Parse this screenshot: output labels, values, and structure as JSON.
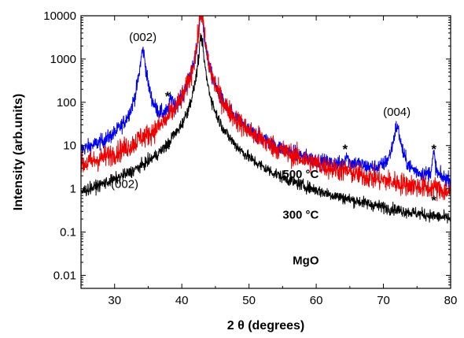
{
  "chart_data": {
    "type": "line",
    "xlabel": "2 θ (degrees)",
    "ylabel": "Intensity (arb.units)",
    "xlim": [
      25,
      80
    ],
    "ylim": [
      0.005,
      10000
    ],
    "y_scale": "log",
    "x_ticks": [
      30,
      40,
      50,
      60,
      70,
      80
    ],
    "x_tick_labels": [
      "30",
      "40",
      "50",
      "60",
      "70",
      "80"
    ],
    "y_ticks": [
      0.01,
      0.1,
      1,
      10,
      100,
      1000,
      10000
    ],
    "y_tick_labels": [
      "0.01",
      "0.1",
      "1",
      "10",
      "100",
      "1000",
      "10000"
    ],
    "grid": false,
    "series": [
      {
        "name": "500 °C",
        "color": "#0000ee",
        "baseline": [
          [
            25,
            3.0
          ],
          [
            30,
            3.3
          ],
          [
            33,
            5.0
          ],
          [
            36,
            5.0
          ],
          [
            38,
            6.5
          ],
          [
            40,
            12
          ],
          [
            41,
            22
          ],
          [
            42,
            80
          ],
          [
            44,
            60
          ],
          [
            46,
            15
          ],
          [
            48,
            6
          ],
          [
            50,
            3.0
          ],
          [
            55,
            1.5
          ],
          [
            60,
            1.0
          ],
          [
            65,
            1.0
          ],
          [
            70,
            1.0
          ],
          [
            75,
            0.9
          ],
          [
            80,
            0.75
          ]
        ],
        "peaks": [
          [
            34.2,
            1550,
            0.35
          ],
          [
            38.3,
            45,
            0.15
          ],
          [
            38.6,
            60,
            0.12
          ],
          [
            41.1,
            130,
            0.12
          ],
          [
            42.9,
            12000,
            0.28
          ],
          [
            64.5,
            3.0,
            0.2
          ],
          [
            66.0,
            0.8,
            1.2
          ],
          [
            72.0,
            25,
            0.45
          ],
          [
            77.5,
            4.5,
            0.2
          ]
        ],
        "noise": 0.09,
        "label": "500 °C"
      },
      {
        "name": "300 °C",
        "color": "#ee0000",
        "baseline": [
          [
            25,
            0.2
          ],
          [
            30,
            0.22
          ],
          [
            33,
            0.3
          ],
          [
            36,
            0.3
          ],
          [
            38,
            0.35
          ],
          [
            40,
            1.0
          ],
          [
            41,
            2.5
          ],
          [
            42,
            12
          ],
          [
            44,
            8
          ],
          [
            46,
            1.2
          ],
          [
            48,
            0.5
          ],
          [
            50,
            0.3
          ],
          [
            55,
            0.17
          ],
          [
            60,
            0.12
          ],
          [
            65,
            0.11
          ],
          [
            70,
            0.1
          ],
          [
            75,
            0.09
          ],
          [
            80,
            0.07
          ]
        ],
        "peaks": [
          [
            33.8,
            3.0,
            0.3
          ],
          [
            38.4,
            4.5,
            0.15
          ],
          [
            41.1,
            10,
            0.12
          ],
          [
            42.9,
            12000,
            0.3
          ],
          [
            64.5,
            0.22,
            0.2
          ],
          [
            66.0,
            0.08,
            1.2
          ],
          [
            77.5,
            0.15,
            0.2
          ]
        ],
        "noise": 0.13,
        "label": "300 °C"
      },
      {
        "name": "MgO",
        "color": "#000000",
        "baseline": [
          [
            25,
            0.03
          ],
          [
            27,
            0.032
          ],
          [
            28.1,
            0.06
          ],
          [
            29,
            0.035
          ],
          [
            35,
            0.035
          ],
          [
            38,
            0.04
          ],
          [
            38.8,
            0.1
          ],
          [
            40,
            0.15
          ],
          [
            41,
            0.3
          ],
          [
            42,
            2.0
          ],
          [
            44,
            1.0
          ],
          [
            46,
            0.12
          ],
          [
            48,
            0.04
          ],
          [
            50,
            0.02
          ],
          [
            55,
            0.015
          ],
          [
            60,
            0.012
          ],
          [
            65,
            0.012
          ],
          [
            66.5,
            0.02
          ],
          [
            68,
            0.013
          ],
          [
            70,
            0.009
          ],
          [
            75,
            0.009
          ],
          [
            80,
            0.008
          ]
        ],
        "peaks": [
          [
            38.7,
            4.0,
            0.1
          ],
          [
            41.1,
            0.9,
            0.12
          ],
          [
            42.9,
            3000,
            0.3
          ]
        ],
        "noise": 0.07,
        "label": "MgO"
      }
    ],
    "annotations": [
      {
        "text": "(002)",
        "x": 34.2,
        "y": 3200
      },
      {
        "text": "(002)",
        "x": 31.5,
        "y": 1.3
      },
      {
        "text": "(004)",
        "x": 72.0,
        "y": 60
      },
      {
        "text": "*",
        "x": 37.9,
        "y": 150
      },
      {
        "text": "*",
        "x": 37.9,
        "y": 9
      },
      {
        "text": "*",
        "x": 64.3,
        "y": 9
      },
      {
        "text": "*",
        "x": 64.3,
        "y": 0.6
      },
      {
        "text": "*",
        "x": 77.5,
        "y": 9
      },
      {
        "text": "*",
        "x": 77.5,
        "y": 0.6
      }
    ],
    "series_labels": [
      {
        "text": "500 °C",
        "x": 55.0,
        "y": 2.2
      },
      {
        "text": "300 °C",
        "x": 55.0,
        "y": 0.25
      },
      {
        "text": "MgO",
        "x": 56.5,
        "y": 0.022
      }
    ]
  }
}
